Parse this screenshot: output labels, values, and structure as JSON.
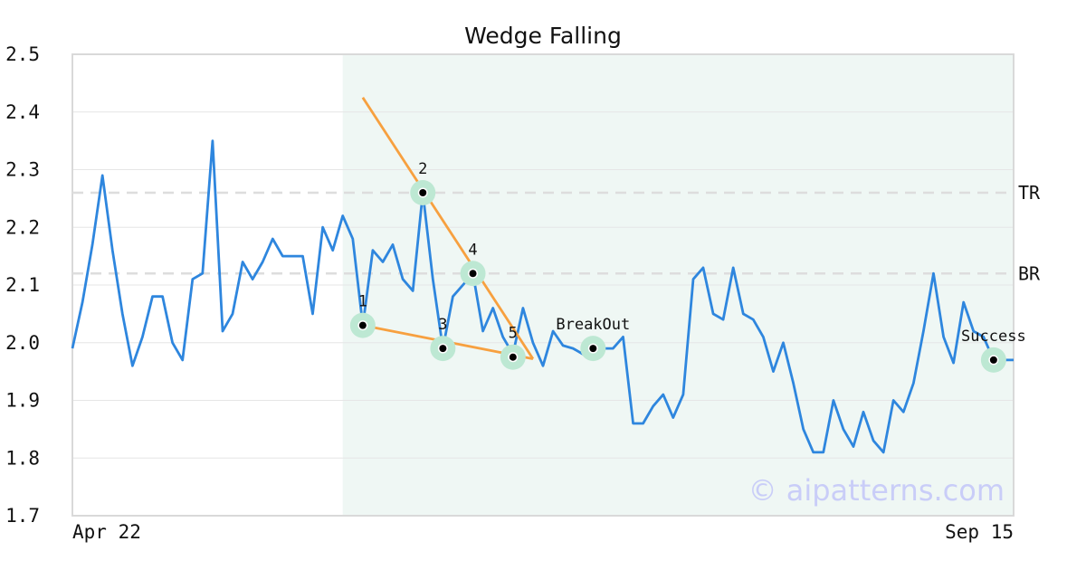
{
  "chart_data": {
    "type": "line",
    "title": "Wedge Falling",
    "x_start_label": "Apr 22",
    "x_end_label": "Sep 15",
    "ylim": [
      1.7,
      2.5
    ],
    "yticks": [
      "1.7",
      "1.8",
      "1.9",
      "2.0",
      "2.1",
      "2.2",
      "2.3",
      "2.4",
      "2.5"
    ],
    "grid": true,
    "series": [
      {
        "values": [
          1.99,
          2.07,
          2.17,
          2.29,
          2.16,
          2.05,
          1.96,
          2.01,
          2.08,
          2.08,
          2.0,
          1.97,
          2.11,
          2.12,
          2.35,
          2.02,
          2.05,
          2.14,
          2.11,
          2.14,
          2.18,
          2.15,
          2.15,
          2.15,
          2.05,
          2.2,
          2.16,
          2.22,
          2.18,
          2.03,
          2.16,
          2.14,
          2.17,
          2.11,
          2.09,
          2.26,
          2.11,
          1.99,
          2.08,
          2.1,
          2.12,
          2.02,
          2.06,
          2.01,
          1.98,
          2.06,
          2.0,
          1.96,
          2.02,
          1.995,
          1.99,
          1.98,
          1.99,
          1.99,
          1.99,
          2.01,
          1.86,
          1.86,
          1.89,
          1.91,
          1.87,
          1.91,
          2.11,
          2.13,
          2.05,
          2.04,
          2.13,
          2.05,
          2.04,
          2.01,
          1.95,
          2.0,
          1.93,
          1.85,
          1.81,
          1.81,
          1.9,
          1.85,
          1.82,
          1.88,
          1.83,
          1.81,
          1.9,
          1.88,
          1.93,
          2.02,
          2.12,
          2.01,
          1.965,
          2.07,
          2.02,
          2.01,
          1.97,
          1.97,
          1.97
        ],
        "color": "#2e86de"
      }
    ],
    "highlight_range": [
      27,
      94
    ],
    "reference_lines": [
      {
        "label": "TR",
        "value": 2.26
      },
      {
        "label": "BR",
        "value": 2.12
      }
    ],
    "trend_lines": [
      {
        "from": [
          29,
          2.425
        ],
        "to": [
          46,
          1.972
        ]
      },
      {
        "from": [
          29,
          2.03
        ],
        "to": [
          46,
          1.972
        ]
      }
    ],
    "points": [
      {
        "label": "1",
        "x": 29,
        "y": 2.03
      },
      {
        "label": "2",
        "x": 35,
        "y": 2.26
      },
      {
        "label": "3",
        "x": 37,
        "y": 1.99
      },
      {
        "label": "4",
        "x": 40,
        "y": 2.12
      },
      {
        "label": "5",
        "x": 44,
        "y": 1.975
      },
      {
        "label": "BreakOut",
        "x": 52,
        "y": 1.99
      },
      {
        "label": "Success",
        "x": 92,
        "y": 1.97
      }
    ],
    "watermark": "© aipatterns.com",
    "colors": {
      "line": "#2e86de",
      "trend": "#f7a03f",
      "highlight": "#eff7f4",
      "marker_halo": "#bde8d3",
      "reference": "#dddddd"
    }
  }
}
